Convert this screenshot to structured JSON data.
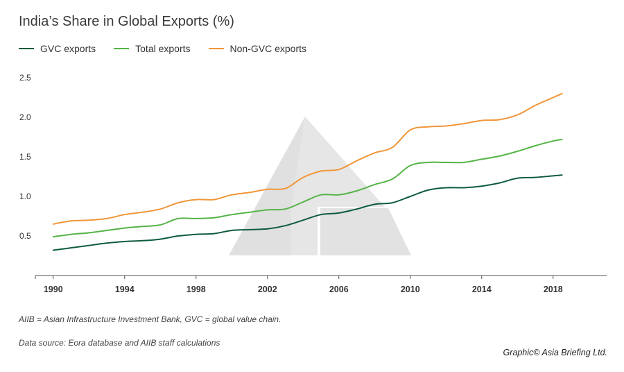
{
  "title": "India’s Share in Global Exports (%)",
  "colors": {
    "gvc": "#0d5c3c",
    "total": "#55b447",
    "non_gvc": "#f0963a",
    "watermark": "#e3e3e3",
    "axis": "#555555"
  },
  "footnote": "AIIB = Asian Infrastructure Investment Bank, GVC = global value chain.",
  "source": "Data source: Eora database and AIIB staff calculations",
  "credit": "Graphic© Asia Briefing Ltd.",
  "chart_data": {
    "type": "line",
    "title": "India’s Share in Global Exports (%)",
    "xlabel": "",
    "ylabel": "",
    "xlim": [
      1989,
      2021
    ],
    "ylim": [
      0,
      2.5
    ],
    "x_ticks": [
      1990,
      1994,
      1998,
      2002,
      2006,
      2010,
      2014,
      2018
    ],
    "y_ticks": [
      0.5,
      1.0,
      1.5,
      2.0,
      2.5
    ],
    "y_tick_labels": [
      "0.5",
      "1.0",
      "1.5",
      "2.0",
      "2.5"
    ],
    "grid": false,
    "legend_position": "top-left",
    "series": [
      {
        "name": "GVC exports",
        "color_key": "gvc",
        "points": [
          [
            1990,
            0.32
          ],
          [
            1991,
            0.35
          ],
          [
            1992,
            0.38
          ],
          [
            1993,
            0.41
          ],
          [
            1994,
            0.43
          ],
          [
            1995,
            0.44
          ],
          [
            1996,
            0.46
          ],
          [
            1997,
            0.5
          ],
          [
            1998,
            0.52
          ],
          [
            1999,
            0.53
          ],
          [
            2000,
            0.57
          ],
          [
            2001,
            0.58
          ],
          [
            2002,
            0.59
          ],
          [
            2003,
            0.63
          ],
          [
            2004,
            0.7
          ],
          [
            2005,
            0.77
          ],
          [
            2006,
            0.79
          ],
          [
            2007,
            0.84
          ],
          [
            2008,
            0.9
          ],
          [
            2009,
            0.92
          ],
          [
            2010,
            1.0
          ],
          [
            2011,
            1.08
          ],
          [
            2012,
            1.11
          ],
          [
            2013,
            1.11
          ],
          [
            2014,
            1.13
          ],
          [
            2015,
            1.17
          ],
          [
            2016,
            1.23
          ],
          [
            2017,
            1.24
          ],
          [
            2018,
            1.26
          ],
          [
            2018.5,
            1.27
          ]
        ]
      },
      {
        "name": "Total exports",
        "color_key": "total",
        "points": [
          [
            1990,
            0.49
          ],
          [
            1991,
            0.52
          ],
          [
            1992,
            0.54
          ],
          [
            1993,
            0.57
          ],
          [
            1994,
            0.6
          ],
          [
            1995,
            0.62
          ],
          [
            1996,
            0.64
          ],
          [
            1997,
            0.72
          ],
          [
            1998,
            0.72
          ],
          [
            1999,
            0.73
          ],
          [
            2000,
            0.77
          ],
          [
            2001,
            0.8
          ],
          [
            2002,
            0.83
          ],
          [
            2003,
            0.84
          ],
          [
            2004,
            0.93
          ],
          [
            2005,
            1.02
          ],
          [
            2006,
            1.02
          ],
          [
            2007,
            1.07
          ],
          [
            2008,
            1.15
          ],
          [
            2009,
            1.22
          ],
          [
            2010,
            1.39
          ],
          [
            2011,
            1.43
          ],
          [
            2012,
            1.43
          ],
          [
            2013,
            1.43
          ],
          [
            2014,
            1.47
          ],
          [
            2015,
            1.51
          ],
          [
            2016,
            1.57
          ],
          [
            2017,
            1.64
          ],
          [
            2018,
            1.7
          ],
          [
            2018.5,
            1.72
          ]
        ]
      },
      {
        "name": "Non-GVC exports",
        "color_key": "non_gvc",
        "points": [
          [
            1990,
            0.65
          ],
          [
            1991,
            0.69
          ],
          [
            1992,
            0.7
          ],
          [
            1993,
            0.72
          ],
          [
            1994,
            0.77
          ],
          [
            1995,
            0.8
          ],
          [
            1996,
            0.84
          ],
          [
            1997,
            0.92
          ],
          [
            1998,
            0.96
          ],
          [
            1999,
            0.96
          ],
          [
            2000,
            1.02
          ],
          [
            2001,
            1.05
          ],
          [
            2002,
            1.09
          ],
          [
            2003,
            1.1
          ],
          [
            2004,
            1.24
          ],
          [
            2005,
            1.32
          ],
          [
            2006,
            1.34
          ],
          [
            2007,
            1.45
          ],
          [
            2008,
            1.55
          ],
          [
            2009,
            1.62
          ],
          [
            2010,
            1.84
          ],
          [
            2011,
            1.88
          ],
          [
            2012,
            1.89
          ],
          [
            2013,
            1.92
          ],
          [
            2014,
            1.96
          ],
          [
            2015,
            1.97
          ],
          [
            2016,
            2.03
          ],
          [
            2017,
            2.15
          ],
          [
            2018,
            2.25
          ],
          [
            2018.5,
            2.3
          ]
        ]
      }
    ]
  }
}
